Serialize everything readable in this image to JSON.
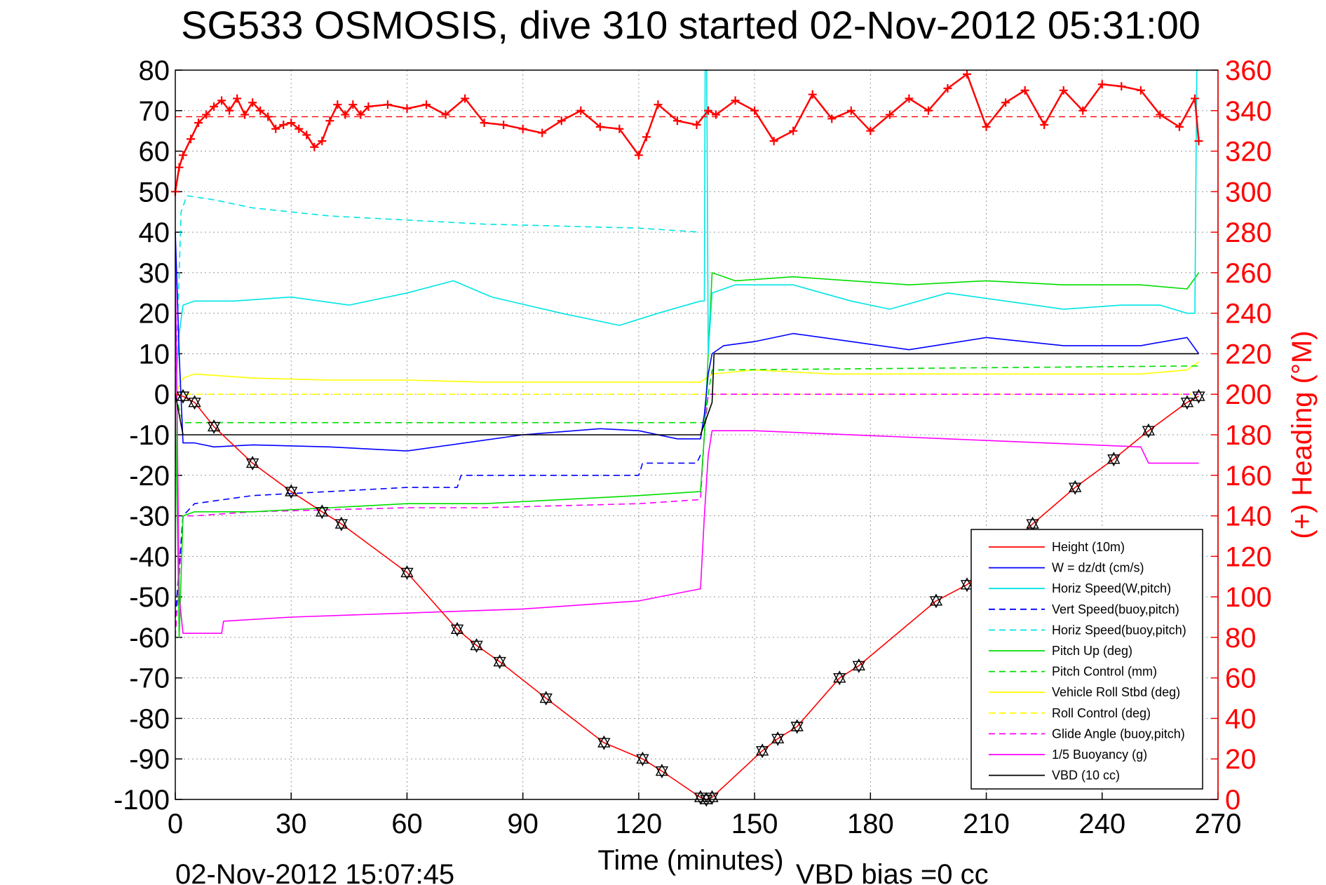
{
  "chart_data": {
    "type": "line",
    "title": "SG533 OSMOSIS, dive 310 started 02-Nov-2012 05:31:00",
    "xlabel": "Time (minutes)",
    "ylabel_right": "(+) Heading (°M)",
    "footer_left": "02-Nov-2012 15:07:45",
    "footer_right": "VBD bias =0 cc",
    "xlim": [
      0,
      270
    ],
    "ylim": [
      -100,
      80
    ],
    "y2lim": [
      0,
      360
    ],
    "x_ticks": [
      "0",
      "30",
      "60",
      "90",
      "120",
      "150",
      "180",
      "210",
      "240",
      "270"
    ],
    "y_ticks": [
      "80",
      "70",
      "60",
      "50",
      "40",
      "30",
      "20",
      "10",
      "0",
      "-10",
      "-20",
      "-30",
      "-40",
      "-50",
      "-60",
      "-70",
      "-80",
      "-90",
      "-100"
    ],
    "y2_ticks": [
      "360",
      "340",
      "320",
      "300",
      "280",
      "260",
      "240",
      "220",
      "200",
      "180",
      "160",
      "140",
      "120",
      "100",
      "80",
      "60",
      "40",
      "20",
      "0"
    ],
    "grid": true,
    "legend_position": "bottom-right",
    "series": [
      {
        "name": "Height (10m)",
        "color": "#ff0000",
        "style": "solid",
        "x": [
          0,
          2,
          5,
          10,
          20,
          30,
          38,
          43,
          60,
          73,
          78,
          84,
          96,
          111,
          121,
          126,
          136,
          137.5,
          139,
          152,
          156,
          161,
          172,
          177,
          197,
          205,
          210,
          222,
          233,
          243,
          252,
          262,
          265
        ],
        "y": [
          0,
          -0.5,
          -2,
          -8,
          -17,
          -24,
          -29,
          -32,
          -44,
          -58,
          -62,
          -66,
          -75,
          -86,
          -90,
          -93,
          -99.5,
          -100,
          -99.5,
          -88,
          -85,
          -82,
          -70,
          -67,
          -51,
          -47,
          -43,
          -32,
          -23,
          -16,
          -9,
          -2,
          -0.5
        ]
      },
      {
        "name": "W = dz/dt (cm/s)",
        "color": "#0000ff",
        "style": "solid",
        "x": [
          0,
          1,
          2,
          5,
          10,
          20,
          40,
          60,
          75,
          90,
          110,
          120,
          130,
          136,
          137,
          138,
          139,
          142,
          150,
          160,
          175,
          190,
          210,
          230,
          250,
          262,
          265
        ],
        "y": [
          40,
          10,
          -12,
          -12,
          -13,
          -12.5,
          -13,
          -14,
          -12,
          -10,
          -8.5,
          -9,
          -11,
          -11,
          -5,
          5,
          10,
          12,
          13,
          15,
          13,
          11,
          14,
          12,
          12,
          14,
          10
        ]
      },
      {
        "name": "Horiz Speed(W,pitch)",
        "color": "#00e5e5",
        "style": "solid",
        "x": [
          0,
          1,
          2,
          5,
          15,
          30,
          45,
          60,
          72,
          82,
          100,
          115,
          125,
          136,
          137,
          137.2,
          137.6,
          138,
          139,
          145,
          160,
          175,
          185,
          200,
          215,
          230,
          245,
          255,
          262,
          264,
          264.5,
          265
        ],
        "y": [
          0,
          15,
          22,
          23,
          23,
          24,
          22,
          25,
          28,
          24,
          20,
          17,
          20,
          23,
          23,
          80,
          80,
          10,
          25,
          27,
          27,
          23,
          21,
          25,
          23,
          21,
          22,
          22,
          20,
          20,
          80,
          80
        ]
      },
      {
        "name": "Vert Speed(buoy,pitch)",
        "color": "#0000ff",
        "style": "dashed",
        "x": [
          0,
          2,
          5,
          20,
          40,
          60,
          73,
          74,
          80,
          100,
          120,
          121,
          135,
          136
        ],
        "y": [
          -55,
          -30,
          -27,
          -25,
          -24,
          -23,
          -23,
          -20,
          -20,
          -20,
          -20,
          -17,
          -17,
          -15
        ]
      },
      {
        "name": "Horiz Speed(buoy,pitch)",
        "color": "#00e5e5",
        "style": "dashed",
        "x": [
          0,
          1.5,
          3,
          10,
          20,
          30,
          40,
          60,
          80,
          100,
          120,
          136
        ],
        "y": [
          0,
          45,
          49,
          48,
          46,
          45,
          44,
          43,
          42,
          41.5,
          41,
          40
        ]
      },
      {
        "name": "Pitch Up (deg)",
        "color": "#00dd00",
        "style": "solid",
        "x": [
          0,
          1,
          2,
          5,
          20,
          40,
          60,
          80,
          100,
          120,
          136,
          137,
          138,
          139,
          145,
          160,
          175,
          190,
          210,
          230,
          250,
          262,
          265
        ],
        "y": [
          0,
          -60,
          -30,
          -29,
          -29,
          -28,
          -27,
          -27,
          -26,
          -25,
          -24,
          -10,
          10,
          30,
          28,
          29,
          28,
          27,
          28,
          27,
          27,
          26,
          30
        ]
      },
      {
        "name": "Pitch Control (mm)",
        "color": "#00dd00",
        "style": "dashed",
        "x": [
          0,
          2,
          136,
          137,
          138,
          139,
          265
        ],
        "y": [
          0,
          -7,
          -7,
          -7,
          0,
          6,
          7
        ]
      },
      {
        "name": "Vehicle Roll Stbd (deg)",
        "color": "#ffff00",
        "style": "solid",
        "x": [
          0,
          2,
          5,
          20,
          40,
          60,
          80,
          100,
          120,
          136,
          139,
          150,
          170,
          190,
          210,
          230,
          250,
          262,
          265
        ],
        "y": [
          0,
          4,
          5,
          4,
          3.5,
          3.5,
          3,
          3,
          3,
          3,
          5,
          6,
          5,
          5,
          5,
          5,
          5,
          6,
          8
        ]
      },
      {
        "name": "Roll Control (deg)",
        "color": "#ffff00",
        "style": "dashed",
        "x": [
          0,
          136,
          139,
          265
        ],
        "y": [
          0,
          0,
          0,
          0
        ]
      },
      {
        "name": "Glide Angle (buoy,pitch)",
        "color": "#ff00ff",
        "style": "dashed",
        "x": [
          0,
          2,
          5,
          20,
          40,
          60,
          80,
          100,
          120,
          136,
          137,
          138,
          139,
          265
        ],
        "y": [
          -60,
          -30,
          -30,
          -29,
          -28.5,
          -28,
          -28,
          -27.5,
          -27,
          -26,
          -10,
          0,
          0,
          0
        ]
      },
      {
        "name": "1/5 Buoyancy (g)",
        "color": "#ff00ff",
        "style": "solid",
        "x": [
          0,
          1,
          2,
          12,
          12.5,
          30,
          60,
          90,
          120,
          136,
          137,
          138,
          139,
          150,
          200,
          250,
          252,
          265
        ],
        "y": [
          35,
          -50,
          -59,
          -59,
          -56,
          -55,
          -54,
          -53,
          -51,
          -48,
          -30,
          -15,
          -9,
          -9,
          -11,
          -13,
          -17,
          -17
        ]
      },
      {
        "name": "VBD (10 cc)",
        "color": "#000000",
        "style": "solid",
        "x": [
          0,
          2,
          136,
          139,
          139.5,
          265
        ],
        "y": [
          0,
          -10,
          -10,
          -2,
          10,
          10
        ]
      }
    ],
    "heading": {
      "name": "Heading",
      "marker": "+",
      "color": "#ff0000",
      "desired_deg": 337,
      "x": [
        0,
        1,
        2,
        4,
        6,
        8,
        10,
        12,
        14,
        16,
        18,
        20,
        22,
        24,
        26,
        28,
        30,
        32,
        34,
        36,
        38,
        40,
        42,
        44,
        46,
        48,
        50,
        55,
        60,
        65,
        70,
        75,
        80,
        85,
        90,
        95,
        100,
        105,
        110,
        115,
        120,
        122,
        125,
        130,
        135,
        138,
        140,
        145,
        150,
        155,
        160,
        165,
        170,
        175,
        180,
        185,
        190,
        195,
        200,
        205,
        210,
        215,
        220,
        225,
        230,
        235,
        240,
        245,
        250,
        255,
        260,
        264,
        265
      ],
      "y": [
        300,
        312,
        318,
        326,
        334,
        338,
        342,
        345,
        340,
        346,
        338,
        344,
        340,
        337,
        331,
        333,
        334,
        331,
        328,
        322,
        325,
        335,
        343,
        338,
        343,
        338,
        342,
        343,
        341,
        343,
        338,
        346,
        334,
        333,
        331,
        329,
        335,
        340,
        332,
        331,
        318,
        327,
        343,
        335,
        333,
        340,
        338,
        345,
        340,
        325,
        330,
        348,
        336,
        340,
        330,
        338,
        346,
        340,
        351,
        358,
        332,
        344,
        350,
        333,
        350,
        340,
        353,
        352,
        350,
        338,
        332,
        346,
        325
      ]
    }
  },
  "legend_entries": [
    "Height (10m)",
    "W = dz/dt (cm/s)",
    "Horiz Speed(W,pitch)",
    "Vert Speed(buoy,pitch)",
    "Horiz Speed(buoy,pitch)",
    "Pitch Up (deg)",
    "Pitch Control (mm)",
    "Vehicle Roll Stbd (deg)",
    "Roll Control (deg)",
    "Glide Angle (buoy,pitch)",
    "1/5 Buoyancy (g)",
    "VBD (10 cc)"
  ]
}
